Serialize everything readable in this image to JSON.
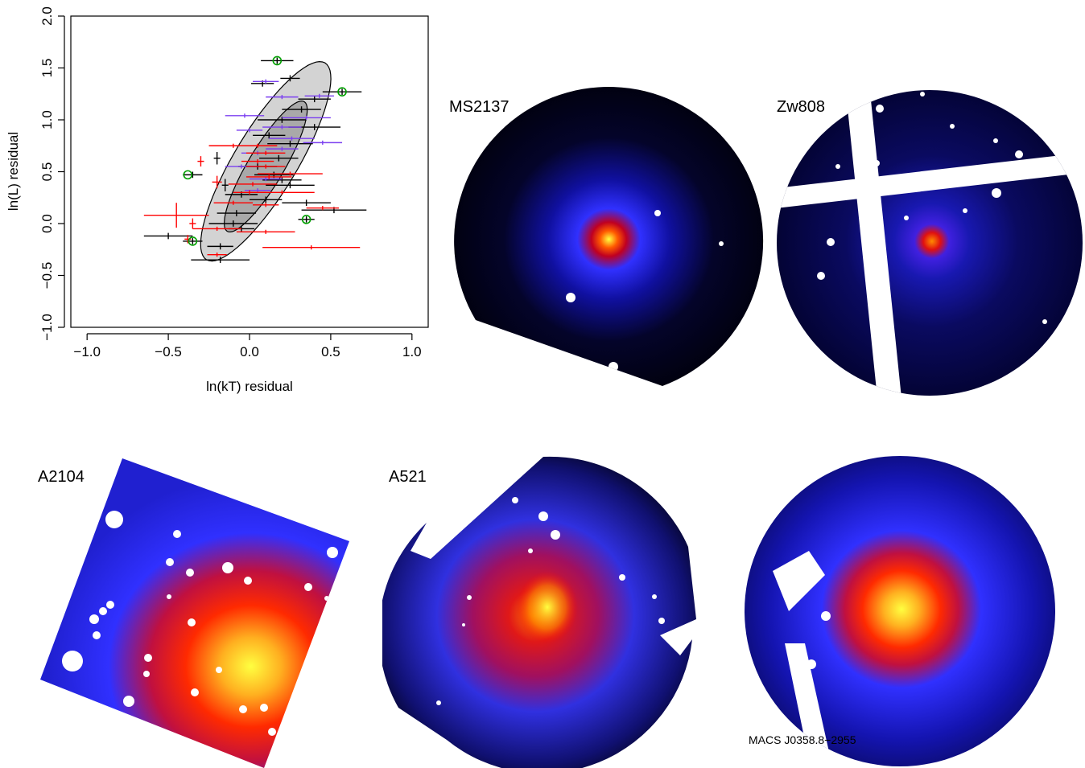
{
  "chart_data": {
    "type": "scatter",
    "xlabel": "ln(kT) residual",
    "ylabel": "ln(L) residual",
    "xlim": [
      -1.1,
      1.1
    ],
    "ylim": [
      -1.0,
      2.0
    ],
    "xticks": [
      "−1.0",
      "−0.5",
      "0.0",
      "0.5",
      "1.0"
    ],
    "xtick_values": [
      -1.0,
      -0.5,
      0.0,
      0.5,
      1.0
    ],
    "yticks": [
      "−1.0",
      "−0.5",
      "0.0",
      "0.5",
      "1.0",
      "1.5",
      "2.0"
    ],
    "ytick_values": [
      -1.0,
      -0.5,
      0.0,
      0.5,
      1.0,
      1.5,
      2.0
    ],
    "grid": false,
    "ellipses": [
      {
        "cx": 0.1,
        "cy": 0.6,
        "semi_major": 1.02,
        "semi_minor": 0.21,
        "angle_deg": 70,
        "fill": "#d3d3d3"
      },
      {
        "cx": 0.1,
        "cy": 0.55,
        "semi_major": 0.67,
        "semi_minor": 0.12,
        "angle_deg": 70,
        "fill": "#a9a9a9"
      }
    ],
    "series": [
      {
        "color": "#000000",
        "points": [
          {
            "x": 0.17,
            "y": 1.57,
            "xerr": 0.1,
            "yerr": 0.03
          },
          {
            "x": 0.08,
            "y": 1.35,
            "xerr": 0.07,
            "yerr": 0.03
          },
          {
            "x": 0.25,
            "y": 1.4,
            "xerr": 0.06,
            "yerr": 0.03
          },
          {
            "x": 0.57,
            "y": 1.27,
            "xerr": 0.12,
            "yerr": 0.03
          },
          {
            "x": 0.4,
            "y": 1.2,
            "xerr": 0.1,
            "yerr": 0.03
          },
          {
            "x": 0.32,
            "y": 1.1,
            "xerr": 0.12,
            "yerr": 0.03
          },
          {
            "x": 0.2,
            "y": 1.0,
            "xerr": 0.15,
            "yerr": 0.03
          },
          {
            "x": 0.4,
            "y": 0.93,
            "xerr": 0.16,
            "yerr": 0.03
          },
          {
            "x": 0.12,
            "y": 0.85,
            "xerr": 0.1,
            "yerr": 0.03
          },
          {
            "x": 0.25,
            "y": 0.77,
            "xerr": 0.14,
            "yerr": 0.03
          },
          {
            "x": -0.2,
            "y": 0.63,
            "xerr": 0.02,
            "yerr": 0.06
          },
          {
            "x": 0.18,
            "y": 0.63,
            "xerr": 0.12,
            "yerr": 0.03
          },
          {
            "x": 0.05,
            "y": 0.55,
            "xerr": 0.12,
            "yerr": 0.03
          },
          {
            "x": 0.15,
            "y": 0.47,
            "xerr": 0.12,
            "yerr": 0.03
          },
          {
            "x": -0.35,
            "y": 0.47,
            "xerr": 0.06,
            "yerr": 0.03
          },
          {
            "x": 0.2,
            "y": 0.42,
            "xerr": 0.12,
            "yerr": 0.03
          },
          {
            "x": -0.15,
            "y": 0.37,
            "xerr": 0.02,
            "yerr": 0.06
          },
          {
            "x": 0.25,
            "y": 0.37,
            "xerr": 0.15,
            "yerr": 0.03
          },
          {
            "x": -0.05,
            "y": 0.28,
            "xerr": 0.1,
            "yerr": 0.03
          },
          {
            "x": 0.1,
            "y": 0.23,
            "xerr": 0.1,
            "yerr": 0.03
          },
          {
            "x": 0.35,
            "y": 0.2,
            "xerr": 0.15,
            "yerr": 0.03
          },
          {
            "x": 0.52,
            "y": 0.13,
            "xerr": 0.2,
            "yerr": 0.03
          },
          {
            "x": -0.08,
            "y": 0.1,
            "xerr": 0.12,
            "yerr": 0.03
          },
          {
            "x": 0.35,
            "y": 0.04,
            "xerr": 0.05,
            "yerr": 0.03
          },
          {
            "x": -0.1,
            "y": 0.0,
            "xerr": 0.15,
            "yerr": 0.03
          },
          {
            "x": -0.05,
            "y": -0.05,
            "xerr": 0.08,
            "yerr": 0.03
          },
          {
            "x": -0.5,
            "y": -0.12,
            "xerr": 0.15,
            "yerr": 0.03
          },
          {
            "x": -0.35,
            "y": -0.17,
            "xerr": 0.06,
            "yerr": 0.03
          },
          {
            "x": -0.18,
            "y": -0.22,
            "xerr": 0.08,
            "yerr": 0.03
          },
          {
            "x": -0.18,
            "y": -0.35,
            "xerr": 0.18,
            "yerr": 0.03
          }
        ]
      },
      {
        "color": "#7b3ff0",
        "points": [
          {
            "x": 0.1,
            "y": 1.37,
            "xerr": 0.08,
            "yerr": 0.02
          },
          {
            "x": 0.2,
            "y": 1.22,
            "xerr": 0.1,
            "yerr": 0.02
          },
          {
            "x": 0.43,
            "y": 1.23,
            "xerr": 0.09,
            "yerr": 0.02
          },
          {
            "x": -0.03,
            "y": 1.04,
            "xerr": 0.12,
            "yerr": 0.02
          },
          {
            "x": 0.35,
            "y": 1.02,
            "xerr": 0.15,
            "yerr": 0.02
          },
          {
            "x": 0.2,
            "y": 0.93,
            "xerr": 0.12,
            "yerr": 0.02
          },
          {
            "x": 0.0,
            "y": 0.9,
            "xerr": 0.08,
            "yerr": 0.02
          },
          {
            "x": 0.26,
            "y": 0.82,
            "xerr": 0.14,
            "yerr": 0.02
          },
          {
            "x": 0.45,
            "y": 0.78,
            "xerr": 0.12,
            "yerr": 0.02
          },
          {
            "x": 0.2,
            "y": 0.72,
            "xerr": 0.1,
            "yerr": 0.02
          },
          {
            "x": 0.05,
            "y": 0.68,
            "xerr": 0.1,
            "yerr": 0.02
          },
          {
            "x": -0.05,
            "y": 0.55,
            "xerr": 0.1,
            "yerr": 0.02
          },
          {
            "x": 0.1,
            "y": 0.43,
            "xerr": 0.1,
            "yerr": 0.02
          },
          {
            "x": 0.05,
            "y": 0.32,
            "xerr": 0.08,
            "yerr": 0.02
          }
        ]
      },
      {
        "color": "#ff0000",
        "points": [
          {
            "x": -0.1,
            "y": 0.75,
            "xerr": 0.15,
            "yerr": 0.02
          },
          {
            "x": 0.05,
            "y": 0.75,
            "xerr": 0.12,
            "yerr": 0.02
          },
          {
            "x": 0.1,
            "y": 0.68,
            "xerr": 0.12,
            "yerr": 0.02
          },
          {
            "x": 0.05,
            "y": 0.6,
            "xerr": 0.1,
            "yerr": 0.02
          },
          {
            "x": 0.1,
            "y": 0.55,
            "xerr": 0.12,
            "yerr": 0.02
          },
          {
            "x": -0.3,
            "y": 0.6,
            "xerr": 0.02,
            "yerr": 0.05
          },
          {
            "x": 0.25,
            "y": 0.48,
            "xerr": 0.2,
            "yerr": 0.02
          },
          {
            "x": 0.12,
            "y": 0.45,
            "xerr": 0.14,
            "yerr": 0.02
          },
          {
            "x": -0.2,
            "y": 0.4,
            "xerr": 0.03,
            "yerr": 0.06
          },
          {
            "x": 0.02,
            "y": 0.38,
            "xerr": 0.15,
            "yerr": 0.02
          },
          {
            "x": 0.0,
            "y": 0.3,
            "xerr": 0.1,
            "yerr": 0.02
          },
          {
            "x": 0.2,
            "y": 0.3,
            "xerr": 0.2,
            "yerr": 0.02
          },
          {
            "x": -0.1,
            "y": 0.2,
            "xerr": 0.12,
            "yerr": 0.02
          },
          {
            "x": 0.1,
            "y": 0.18,
            "xerr": 0.08,
            "yerr": 0.02
          },
          {
            "x": 0.45,
            "y": 0.15,
            "xerr": 0.1,
            "yerr": 0.02
          },
          {
            "x": -0.45,
            "y": 0.08,
            "xerr": 0.2,
            "yerr": 0.12
          },
          {
            "x": -0.35,
            "y": 0.0,
            "xerr": 0.02,
            "yerr": 0.05
          },
          {
            "x": -0.2,
            "y": -0.05,
            "xerr": 0.15,
            "yerr": 0.02
          },
          {
            "x": 0.1,
            "y": -0.08,
            "xerr": 0.18,
            "yerr": 0.02
          },
          {
            "x": -0.38,
            "y": -0.15,
            "xerr": 0.02,
            "yerr": 0.04
          },
          {
            "x": 0.38,
            "y": -0.23,
            "xerr": 0.3,
            "yerr": 0.02
          },
          {
            "x": -0.2,
            "y": -0.3,
            "xerr": 0.06,
            "yerr": 0.02
          }
        ]
      }
    ],
    "highlighted": [
      {
        "x": 0.17,
        "y": 1.57
      },
      {
        "x": 0.57,
        "y": 1.27
      },
      {
        "x": -0.38,
        "y": 0.47
      },
      {
        "x": 0.35,
        "y": 0.04
      },
      {
        "x": -0.35,
        "y": -0.17
      }
    ],
    "highlight_color": "#00a000"
  },
  "images": [
    {
      "key": "ms2137",
      "label": "MS2137",
      "palette": "cool-cluster"
    },
    {
      "key": "zw808",
      "label": "Zw808",
      "palette": "cool-cluster"
    },
    {
      "key": "a2104",
      "label": "A2104",
      "palette": "hot-diffuse"
    },
    {
      "key": "a521",
      "label": "A521",
      "palette": "merger"
    },
    {
      "key": "macs",
      "label": "MACS J0358.8−2955",
      "palette": "merger-bright"
    }
  ],
  "colors": {
    "background": "#000000",
    "low": "#0000ff",
    "mid": "#ff0000",
    "high": "#ffff00",
    "masked": "#ffffff"
  }
}
